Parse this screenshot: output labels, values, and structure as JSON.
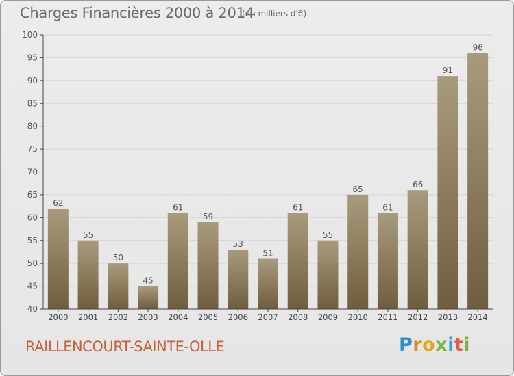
{
  "header": {
    "title": "Charges Financières 2000 à 2014",
    "unit": "(en milliers d'€)"
  },
  "footer": {
    "commune": "RAILLENCOURT-SAINTE-OLLE",
    "logo_letters": [
      "P",
      "r",
      "o",
      "x",
      "i",
      "t",
      "i"
    ]
  },
  "colors": {
    "bar_top": "#a89b7d",
    "bar_bottom": "#6f5e3d",
    "axis": "#444444",
    "grid": "#d4d4d4",
    "commune_text": "#c8603a"
  },
  "chart_data": {
    "type": "bar",
    "categories": [
      "2000",
      "2001",
      "2002",
      "2003",
      "2004",
      "2005",
      "2006",
      "2007",
      "2008",
      "2009",
      "2010",
      "2011",
      "2012",
      "2013",
      "2014"
    ],
    "values": [
      62,
      55,
      50,
      45,
      61,
      59,
      53,
      51,
      61,
      55,
      65,
      61,
      66,
      91,
      96
    ],
    "ylim": [
      40,
      100
    ],
    "yticks": [
      40,
      45,
      50,
      55,
      60,
      65,
      70,
      75,
      80,
      85,
      90,
      95,
      100
    ],
    "grid": true,
    "show_data_labels": true
  }
}
